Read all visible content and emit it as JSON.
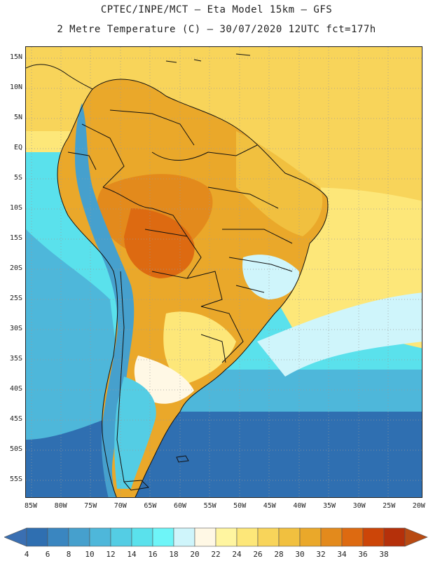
{
  "title_line1": "CPTEC/INPE/MCT –  Eta Model 15km – GFS",
  "title_line2": "2 Metre Temperature (C) – 30/07/2020 12UTC fct=177h",
  "lat_labels": [
    "15N",
    "10N",
    "5N",
    "EQ",
    "5S",
    "10S",
    "15S",
    "20S",
    "25S",
    "30S",
    "35S",
    "40S",
    "45S",
    "50S",
    "55S"
  ],
  "lon_labels": [
    "85W",
    "80W",
    "75W",
    "70W",
    "65W",
    "60W",
    "55W",
    "50W",
    "45W",
    "40W",
    "35W",
    "30W",
    "25W",
    "20W"
  ],
  "colorbar": {
    "labels": [
      "4",
      "6",
      "8",
      "10",
      "12",
      "14",
      "16",
      "18",
      "20",
      "22",
      "24",
      "26",
      "28",
      "30",
      "32",
      "34",
      "36",
      "38"
    ],
    "colors": [
      "#2f6fb1",
      "#3a86c0",
      "#46a0cd",
      "#4eb7da",
      "#54cde4",
      "#5ae1ec",
      "#6ef5f8",
      "#cff5fb",
      "#fff8e5",
      "#fff5a0",
      "#fde779",
      "#f8d45a",
      "#f1c03f",
      "#eaa82a",
      "#e38a1c",
      "#dd6a11",
      "#cc4508",
      "#b5300a"
    ],
    "low_color": "#3a6fb2",
    "high_color": "#b84a12"
  },
  "map_colors": {
    "ocean_south": "#2f6fb1",
    "ocean_mid": "#4eb7da",
    "ocean_mid2": "#5ae1ec",
    "ocean_warm": "#fde779",
    "ocean_north": "#f8d45a",
    "land_main": "#eaa82a",
    "land_hot": "#e38a1c",
    "land_mild": "#f1c03f",
    "andes": "#46a0cd",
    "patagonia": "#54cde4",
    "cool_land": "#cff5fb"
  }
}
